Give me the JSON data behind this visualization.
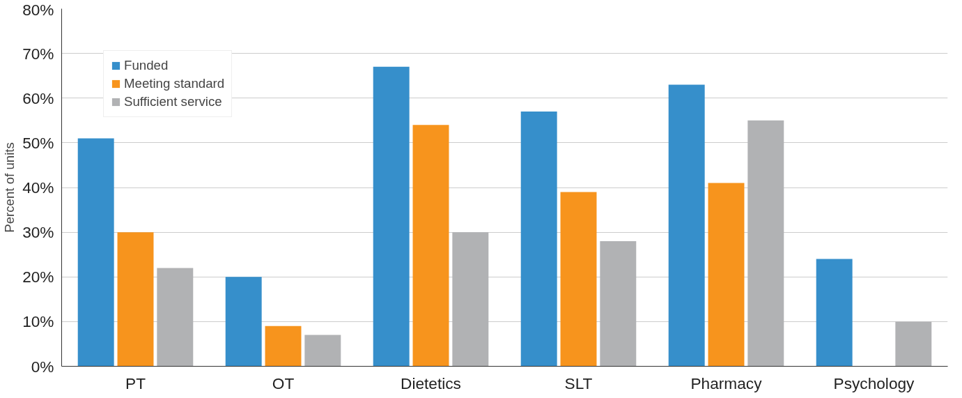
{
  "chart_data": {
    "type": "bar",
    "ylabel": "Percent of units",
    "categories": [
      "PT",
      "OT",
      "Dietetics",
      "SLT",
      "Pharmacy",
      "Psychology"
    ],
    "series": [
      {
        "name": "Funded",
        "color": "#368fcb",
        "values": [
          51,
          20,
          67,
          57,
          63,
          24
        ]
      },
      {
        "name": "Meeting standard",
        "color": "#f7941d",
        "values": [
          30,
          9,
          54,
          39,
          41,
          null
        ]
      },
      {
        "name": "Sufficient service",
        "color": "#b1b2b4",
        "values": [
          22,
          7,
          30,
          28,
          55,
          10
        ]
      }
    ],
    "ylim": [
      0,
      80
    ],
    "yticks": [
      {
        "value": 0,
        "label": "0%"
      },
      {
        "value": 10,
        "label": "10%"
      },
      {
        "value": 20,
        "label": "20%"
      },
      {
        "value": 30,
        "label": "30%"
      },
      {
        "value": 40,
        "label": "40%"
      },
      {
        "value": 50,
        "label": "50%"
      },
      {
        "value": 60,
        "label": "60%"
      },
      {
        "value": 70,
        "label": "70%"
      },
      {
        "value": 80,
        "label": "80%"
      }
    ],
    "grid": "y",
    "legend": "top left"
  }
}
